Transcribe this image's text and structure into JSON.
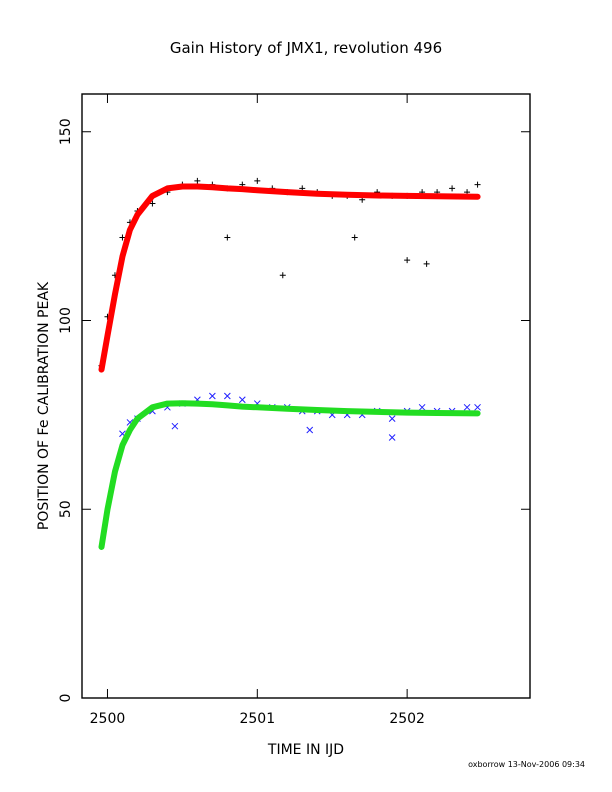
{
  "chart_data": {
    "type": "scatter",
    "title": "Gain History of JMX1, revolution 496",
    "xlabel": "TIME IN IJD",
    "ylabel": "POSITION OF Fe CALIBRATION PEAK",
    "footer": "oxborrow 13-Nov-2006 09:34",
    "xlim": [
      2499.83,
      2502.82
    ],
    "ylim": [
      0,
      160
    ],
    "x_ticks": [
      2500,
      2501,
      2502
    ],
    "x_tick_labels": [
      "2500",
      "2501",
      "2502"
    ],
    "y_ticks": [
      0,
      50,
      100,
      150
    ],
    "y_tick_labels": [
      "0",
      "50",
      "100",
      "150"
    ],
    "grid": false,
    "series": [
      {
        "marker": "plus",
        "color": "#000000",
        "x": [
          2499.96,
          2500.0,
          2500.05,
          2500.1,
          2500.15,
          2500.2,
          2500.3,
          2500.4,
          2500.5,
          2500.6,
          2500.7,
          2500.8,
          2500.9,
          2501.0,
          2501.1,
          2501.2,
          2501.3,
          2501.4,
          2501.5,
          2501.6,
          2501.7,
          2501.8,
          2501.9,
          2502.0,
          2502.1,
          2502.2,
          2502.3,
          2502.4,
          2502.47,
          2500.8,
          2501.17,
          2501.65,
          2502.0,
          2502.13
        ],
        "y": [
          88,
          101,
          112,
          122,
          126,
          129,
          131,
          134,
          136,
          137,
          136,
          135,
          136,
          137,
          135,
          134,
          135,
          134,
          133,
          133,
          132,
          134,
          133,
          133,
          134,
          134,
          135,
          134,
          136,
          122,
          112,
          122,
          116,
          115
        ]
      },
      {
        "marker": "line",
        "color": "#ff0000",
        "x": [
          2499.96,
          2500.0,
          2500.05,
          2500.1,
          2500.15,
          2500.2,
          2500.3,
          2500.4,
          2500.5,
          2500.6,
          2500.7,
          2500.8,
          2500.9,
          2501.0,
          2501.2,
          2501.4,
          2501.6,
          2501.8,
          2502.0,
          2502.2,
          2502.47
        ],
        "y": [
          87,
          96,
          107,
          117,
          124,
          128,
          133,
          135,
          135.5,
          135.5,
          135.3,
          135,
          134.8,
          134.5,
          134,
          133.6,
          133.3,
          133.1,
          133,
          132.9,
          132.8
        ]
      },
      {
        "marker": "x",
        "color": "#2020ff",
        "x": [
          2500.1,
          2500.15,
          2500.2,
          2500.3,
          2500.4,
          2500.5,
          2500.6,
          2500.7,
          2500.8,
          2500.9,
          2501.0,
          2501.1,
          2501.2,
          2501.3,
          2501.4,
          2501.5,
          2501.6,
          2501.7,
          2501.8,
          2501.9,
          2502.0,
          2502.1,
          2502.2,
          2502.3,
          2502.4,
          2502.47,
          2500.45,
          2501.35,
          2501.9
        ],
        "y": [
          70,
          73,
          74,
          76,
          77,
          78,
          79,
          80,
          80,
          79,
          78,
          77,
          77,
          76,
          76,
          75,
          75,
          75,
          76,
          74,
          76,
          77,
          76,
          76,
          77,
          77,
          72,
          71,
          69
        ]
      },
      {
        "marker": "line",
        "color": "#22dd22",
        "x": [
          2499.96,
          2500.0,
          2500.05,
          2500.1,
          2500.15,
          2500.2,
          2500.3,
          2500.4,
          2500.5,
          2500.6,
          2500.7,
          2500.8,
          2500.9,
          2501.0,
          2501.2,
          2501.4,
          2501.6,
          2501.8,
          2502.0,
          2502.2,
          2502.47
        ],
        "y": [
          40,
          50,
          60,
          67,
          71,
          74,
          77,
          78,
          78.1,
          78,
          77.8,
          77.5,
          77.2,
          77,
          76.6,
          76.3,
          76,
          75.8,
          75.6,
          75.5,
          75.4
        ]
      }
    ]
  }
}
